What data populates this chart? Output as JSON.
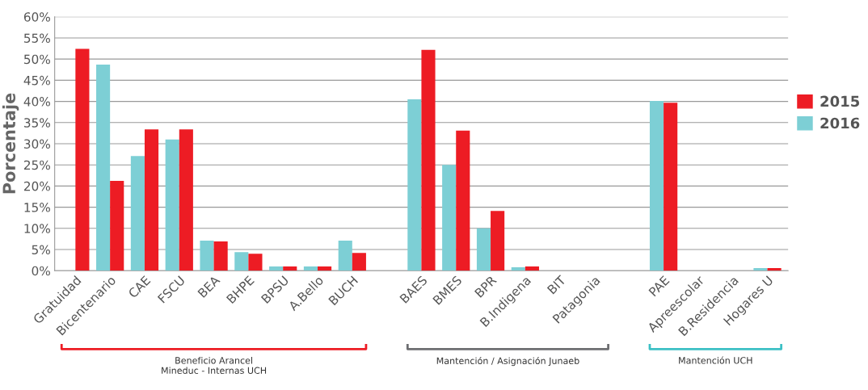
{
  "chart_data": {
    "type": "bar",
    "ylabel": "Porcentaje",
    "categories": [
      "Gratuidad",
      "Bicentenario",
      "CAE",
      "FSCU",
      "BEA",
      "BHPE",
      "BPSU",
      "A.Bello",
      "BUCH",
      null,
      "BAES",
      "BMES",
      "BPR",
      "B.Indigena",
      "BIT",
      "Patagonia",
      null,
      "PAE",
      "Apreescolar",
      "B.Residencia",
      "Hogares U"
    ],
    "series": [
      {
        "name": "2016",
        "color": "#7dcfd5",
        "values": [
          0,
          48.7,
          27.1,
          31,
          7.1,
          4.4,
          1,
          1,
          7.1,
          null,
          40.5,
          25,
          10,
          0.8,
          0,
          0,
          null,
          40.1,
          0,
          0,
          0.6
        ]
      },
      {
        "name": "2015",
        "color": "#ed1c24",
        "values": [
          52.4,
          21.2,
          33.4,
          33.4,
          6.9,
          4,
          1,
          1,
          4.2,
          null,
          52.2,
          33.1,
          14.1,
          1,
          0,
          0,
          null,
          39.7,
          0,
          0,
          0.6
        ]
      }
    ],
    "ylim": [
      0,
      60
    ],
    "yticks": [
      {
        "value": 0,
        "label": "0%"
      },
      {
        "value": 5,
        "label": "5%"
      },
      {
        "value": 10,
        "label": "10%"
      },
      {
        "value": 15,
        "label": "15%"
      },
      {
        "value": 20,
        "label": "20%"
      },
      {
        "value": 25,
        "label": "25%"
      },
      {
        "value": 30,
        "label": "30%"
      },
      {
        "value": 35,
        "label": "35%"
      },
      {
        "value": 40,
        "label": "40%"
      },
      {
        "value": 45,
        "label": "45%"
      },
      {
        "value": 50,
        "label": "50%"
      },
      {
        "value": 55,
        "label": "55%"
      },
      {
        "value": 60,
        "label": "60%"
      }
    ],
    "grid": "y",
    "legend": "right",
    "annotations": [
      "Beneficio Arancel\nMineduc - Internas UCH",
      "Mantención / Asignación Junaeb",
      "Mantención UCH"
    ]
  }
}
